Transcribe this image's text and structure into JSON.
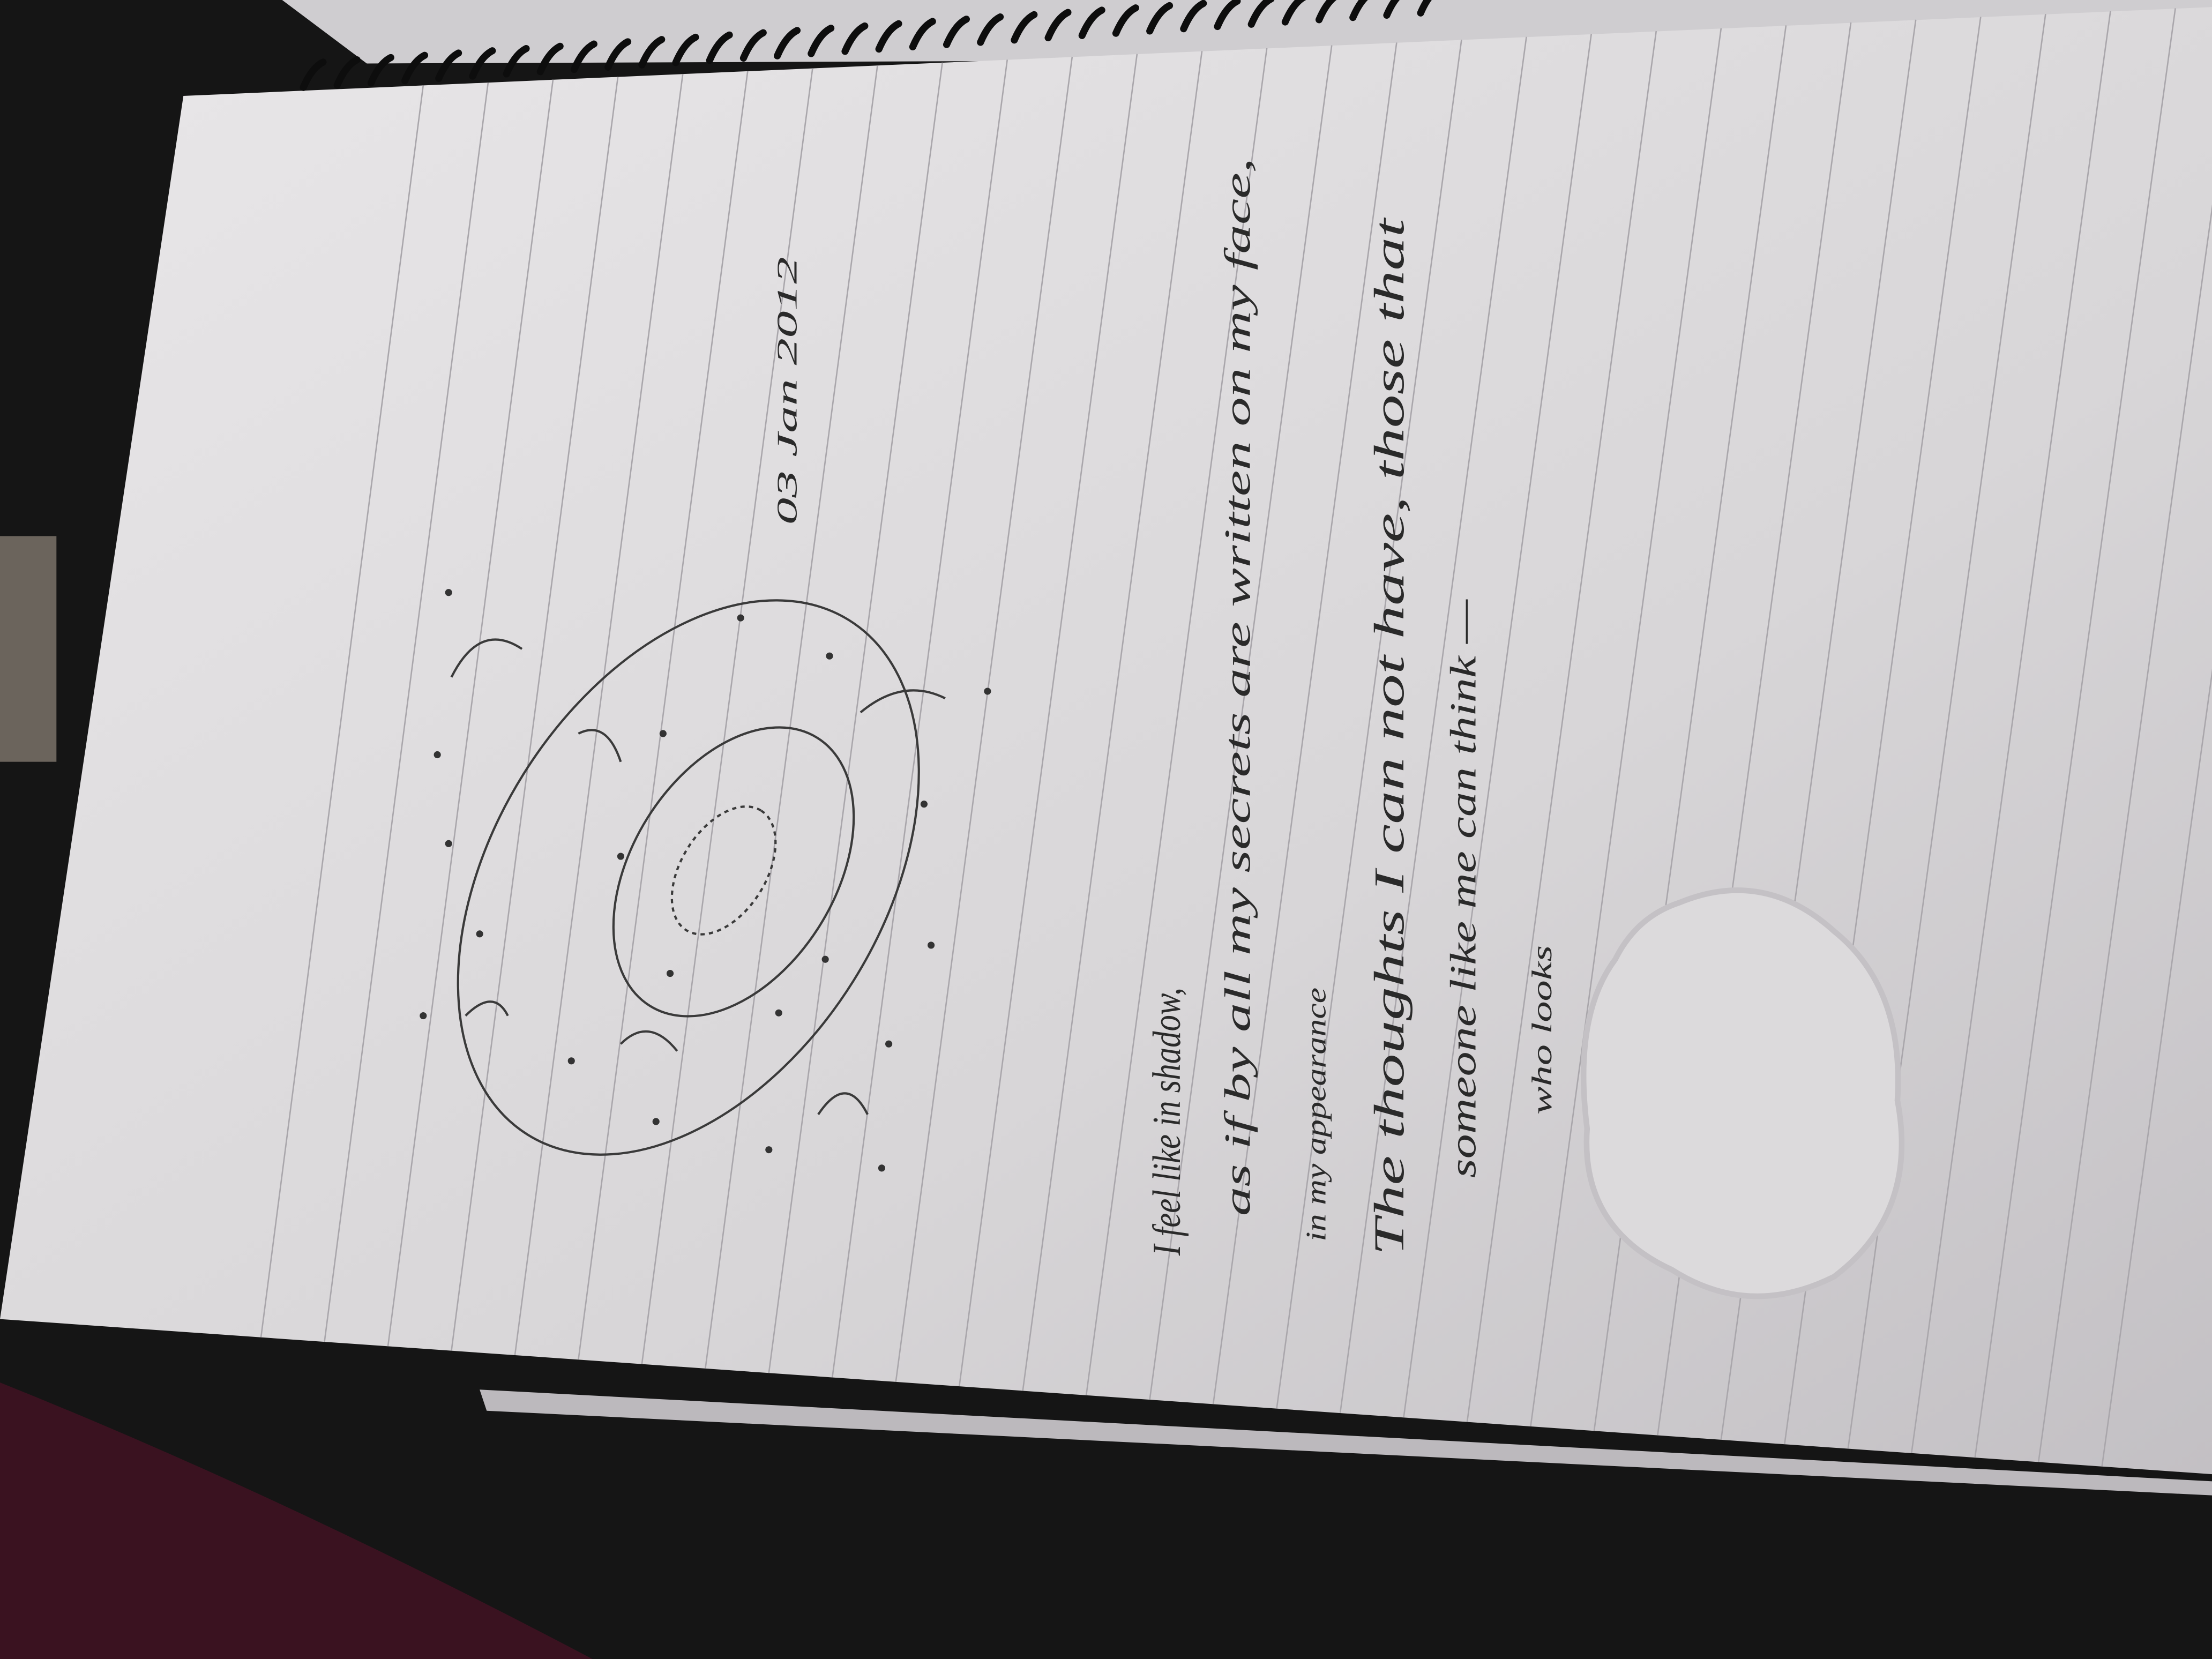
{
  "note": {
    "date": "03 Jan 2012",
    "lines": [
      "I feel like in shadow,",
      "as if by all my secrets are written on my face,",
      "The thoughts I can not have, those that",
      "someone like me can think —"
    ],
    "insertions": [
      "in my appearance",
      "who looks"
    ]
  }
}
